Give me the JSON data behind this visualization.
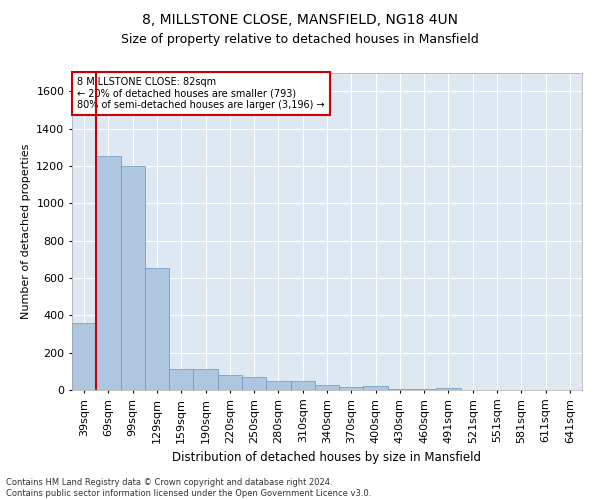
{
  "title1": "8, MILLSTONE CLOSE, MANSFIELD, NG18 4UN",
  "title2": "Size of property relative to detached houses in Mansfield",
  "xlabel": "Distribution of detached houses by size in Mansfield",
  "ylabel": "Number of detached properties",
  "categories": [
    "39sqm",
    "69sqm",
    "99sqm",
    "129sqm",
    "159sqm",
    "190sqm",
    "220sqm",
    "250sqm",
    "280sqm",
    "310sqm",
    "340sqm",
    "370sqm",
    "400sqm",
    "430sqm",
    "460sqm",
    "491sqm",
    "521sqm",
    "551sqm",
    "581sqm",
    "611sqm",
    "641sqm"
  ],
  "values": [
    360,
    1255,
    1200,
    655,
    115,
    110,
    78,
    68,
    50,
    47,
    28,
    18,
    20,
    5,
    5,
    12,
    0,
    0,
    0,
    0,
    0
  ],
  "bar_color": "#aec6df",
  "bar_edge_color": "#6699bb",
  "bg_color": "#dde8f3",
  "grid_color": "#ffffff",
  "vline_x": 0.5,
  "vline_color": "#cc0000",
  "annotation_text": "8 MILLSTONE CLOSE: 82sqm\n← 20% of detached houses are smaller (793)\n80% of semi-detached houses are larger (3,196) →",
  "annotation_box_color": "#cc0000",
  "ylim": [
    0,
    1700
  ],
  "yticks": [
    0,
    200,
    400,
    600,
    800,
    1000,
    1200,
    1400,
    1600
  ],
  "footnote": "Contains HM Land Registry data © Crown copyright and database right 2024.\nContains public sector information licensed under the Open Government Licence v3.0.",
  "title_fontsize": 10,
  "subtitle_fontsize": 9,
  "footnote_fontsize": 6
}
